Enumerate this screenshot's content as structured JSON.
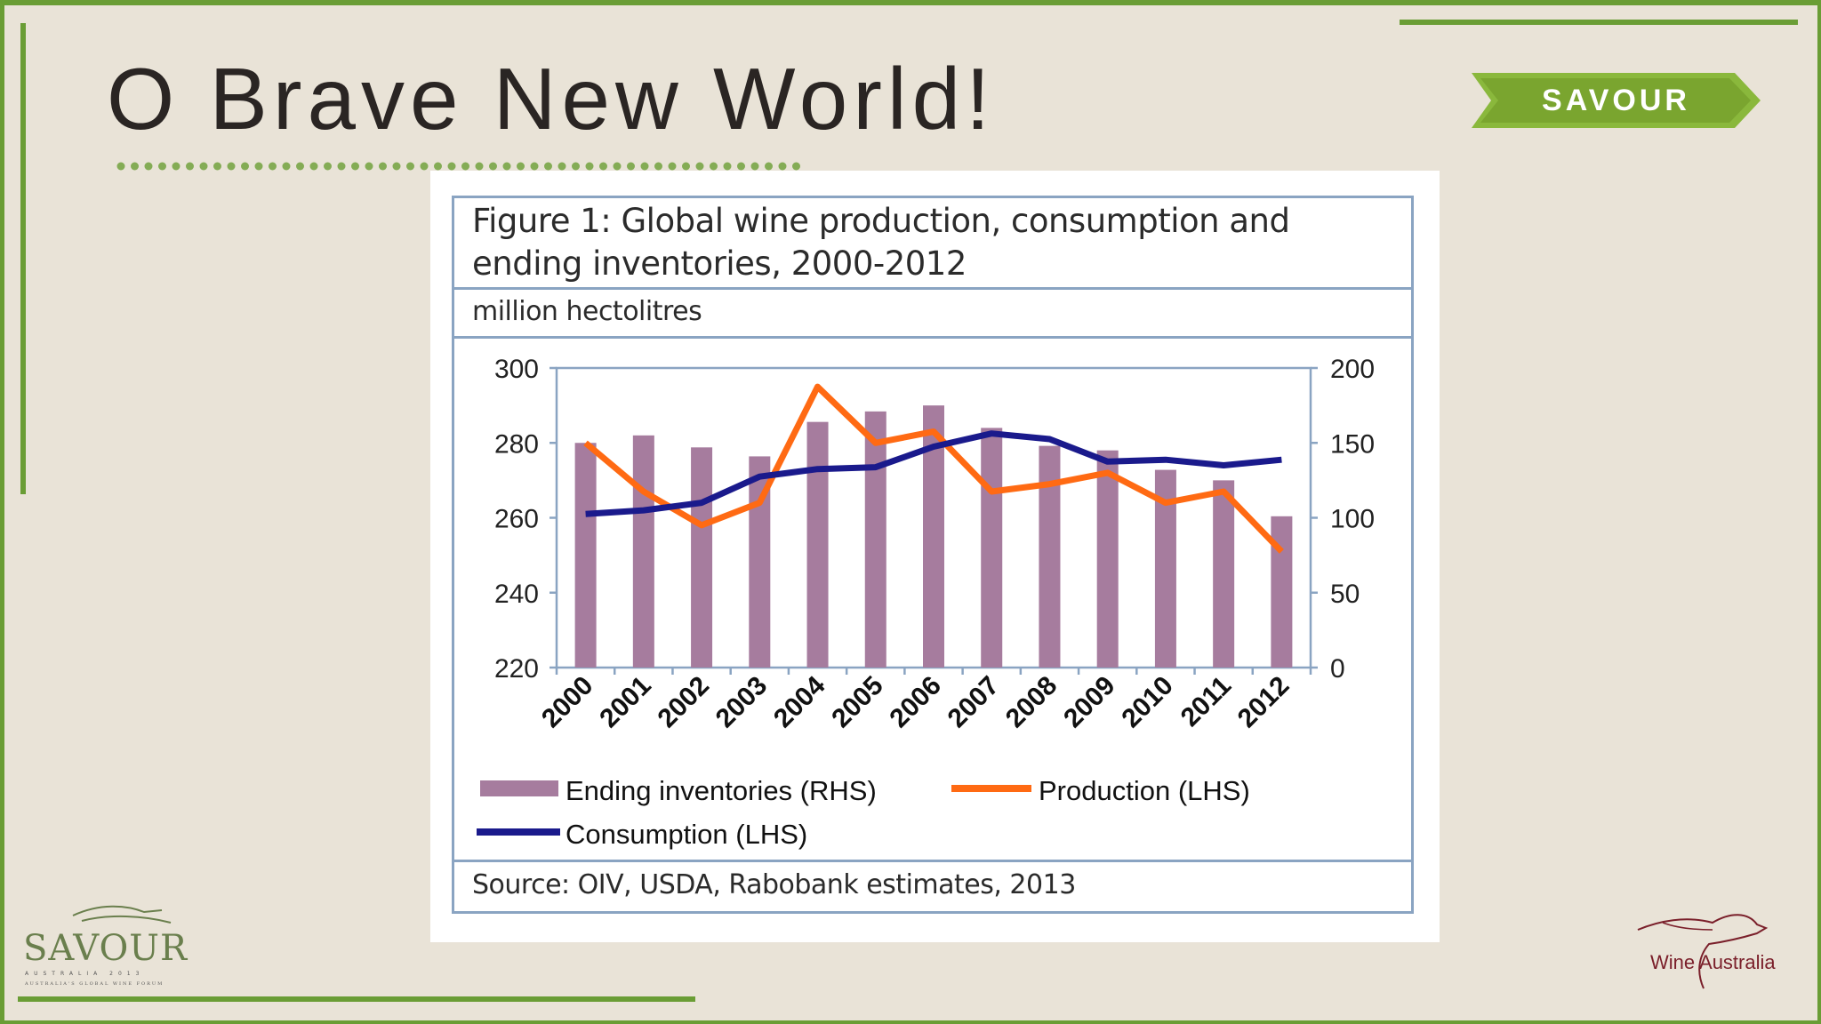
{
  "slide": {
    "title": "O Brave New World!",
    "badge": "SAVOUR"
  },
  "figure": {
    "title": "Figure 1: Global wine production, consumption and ending inventories, 2000-2012",
    "units": "million hectolitres",
    "source": "Source: OIV, USDA, Rabobank estimates, 2013"
  },
  "colors": {
    "frame_green": "#6a9d35",
    "bar": "#a67c9e",
    "production": "#ff6a13",
    "consumption": "#1a1a8c",
    "axis": "#8aa4c2"
  },
  "chart_data": {
    "type": "bar",
    "categories": [
      "2000",
      "2001",
      "2002",
      "2003",
      "2004",
      "2005",
      "2006",
      "2007",
      "2008",
      "2009",
      "2010",
      "2011",
      "2012"
    ],
    "y_left": {
      "ylim": [
        220,
        300
      ],
      "ticks": [
        220,
        240,
        260,
        280,
        300
      ]
    },
    "y_right": {
      "ylim": [
        0,
        200
      ],
      "ticks": [
        0,
        50,
        100,
        150,
        200
      ]
    },
    "series": [
      {
        "name": "Ending inventories (RHS)",
        "type": "bar",
        "axis": "right",
        "values": [
          150,
          155,
          147,
          141,
          164,
          171,
          175,
          160,
          148,
          145,
          132,
          125,
          101
        ]
      },
      {
        "name": "Production (LHS)",
        "type": "line",
        "axis": "left",
        "values": [
          280,
          267,
          258,
          264,
          295,
          280,
          283,
          267,
          269,
          272,
          264,
          267,
          251
        ]
      },
      {
        "name": "Consumption (LHS)",
        "type": "line",
        "axis": "left",
        "values": [
          261,
          262,
          264,
          271,
          273,
          273.5,
          279,
          282.5,
          281,
          275,
          275.5,
          274,
          275.5
        ]
      }
    ],
    "legend": "bottom",
    "grid": false
  },
  "logos": {
    "savour_text": "SAVOUR",
    "savour_sub": "AUSTRALIA 2013",
    "savour_sub2": "AUSTRALIA'S GLOBAL WINE FORUM",
    "wine_australia": "Wine Australia"
  }
}
